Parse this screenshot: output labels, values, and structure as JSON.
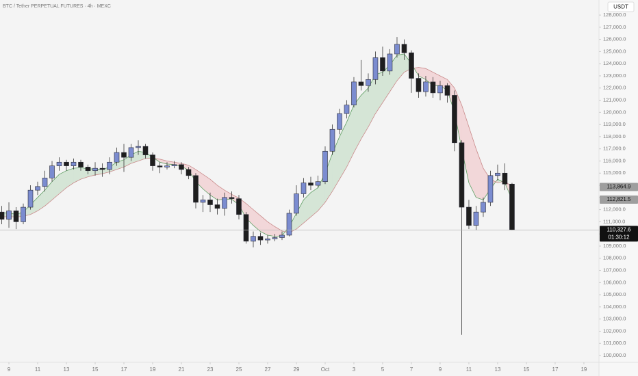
{
  "chart_data": {
    "type": "candlestick",
    "title": "BTC / Tether PERPETUAL FUTURES · 4h · MEXC",
    "currency": "USDT",
    "countdown": "01:30:12",
    "up_color": "#7b8cd0",
    "down_color": "#1e1e1e",
    "x": [
      8.5,
      9,
      9.5,
      10,
      10.5,
      11,
      11.5,
      12,
      12.5,
      13,
      13.5,
      14,
      14.5,
      15,
      15.5,
      16,
      16.5,
      17,
      17.5,
      18,
      18.5,
      19,
      19.5,
      20,
      20.5,
      21,
      21.5,
      22,
      22.5,
      23,
      23.5,
      24,
      24.5,
      25,
      25.5,
      26,
      26.5,
      27,
      27.5,
      28,
      28.5,
      29,
      29.5,
      30,
      30.5,
      31,
      31.5,
      32,
      32.5,
      33,
      33.5,
      34,
      34.5,
      35,
      35.5,
      36,
      36.5,
      37,
      37.5,
      38,
      38.5,
      39,
      39.5,
      40,
      40.5,
      41,
      41.5,
      42,
      42.5,
      43,
      43.5,
      44
    ],
    "open": [
      111800,
      111200,
      111900,
      111000,
      112200,
      113600,
      113900,
      114600,
      115600,
      115900,
      115600,
      115900,
      115500,
      115200,
      115400,
      115300,
      115900,
      116700,
      116300,
      117100,
      117200,
      116500,
      115600,
      115500,
      115600,
      115700,
      115300,
      114800,
      112600,
      112800,
      112400,
      112100,
      113000,
      112900,
      111600,
      109400,
      109800,
      109500,
      109600,
      109700,
      109900,
      111700,
      113300,
      114200,
      114000,
      114300,
      116800,
      118600,
      119900,
      120600,
      122500,
      122200,
      122700,
      124500,
      123400,
      124800,
      125600,
      124900,
      122800,
      121700,
      122500,
      121600,
      122200,
      121400,
      117500,
      112200,
      110700,
      111800,
      112600,
      114800,
      115000,
      114100
    ],
    "high": [
      112300,
      112600,
      112200,
      112500,
      114000,
      114300,
      115200,
      116000,
      116300,
      116100,
      116200,
      116100,
      115700,
      115900,
      115800,
      116300,
      117100,
      117400,
      117400,
      117700,
      117400,
      116700,
      115900,
      115900,
      116000,
      115900,
      115500,
      115000,
      113200,
      113400,
      112900,
      113400,
      113500,
      113200,
      111800,
      110200,
      110100,
      109900,
      110000,
      110200,
      112000,
      114000,
      114600,
      114700,
      114800,
      117200,
      119000,
      120300,
      121000,
      122900,
      124300,
      123200,
      125000,
      125400,
      125200,
      126200,
      126000,
      125100,
      123200,
      123000,
      122900,
      122600,
      122400,
      121800,
      117700,
      112800,
      112300,
      113000,
      115200,
      115700,
      115800,
      114200
    ],
    "low": [
      110800,
      110500,
      110400,
      110800,
      112000,
      113200,
      113500,
      114300,
      115200,
      115200,
      115300,
      115200,
      114900,
      114800,
      114700,
      114900,
      115600,
      115100,
      116000,
      116500,
      116200,
      115200,
      115000,
      115300,
      115400,
      114900,
      114500,
      112100,
      111800,
      111800,
      111600,
      111500,
      112500,
      111200,
      109200,
      108900,
      109100,
      109200,
      109400,
      109500,
      109800,
      111500,
      113000,
      113600,
      113800,
      114100,
      116500,
      118200,
      119500,
      120400,
      121800,
      121700,
      122300,
      123000,
      123100,
      124500,
      124300,
      121600,
      121200,
      121300,
      121200,
      121000,
      120800,
      116800,
      101700,
      110400,
      110300,
      111400,
      112300,
      114400,
      113600,
      110300
    ],
    "close": [
      111200,
      111900,
      111000,
      112200,
      113600,
      113900,
      114600,
      115600,
      115900,
      115600,
      115900,
      115500,
      115200,
      115400,
      115300,
      115900,
      116700,
      116300,
      117100,
      117200,
      116500,
      115600,
      115500,
      115600,
      115700,
      115300,
      114800,
      112600,
      112800,
      112400,
      112100,
      113000,
      112900,
      111600,
      109400,
      109800,
      109500,
      109600,
      109700,
      109900,
      111700,
      113300,
      114200,
      114000,
      114300,
      116800,
      118600,
      119900,
      120600,
      122500,
      122200,
      122700,
      124500,
      123400,
      124800,
      125600,
      124900,
      122800,
      121700,
      122500,
      121600,
      122200,
      121400,
      117500,
      112200,
      110700,
      111800,
      112600,
      114800,
      115000,
      114100,
      110327.6
    ],
    "close_label": "110,327.6",
    "ma_fast": {
      "color": "#5e9e62",
      "last_label": "112,821.5",
      "values": [
        111700,
        111750,
        111600,
        111800,
        112400,
        113000,
        113600,
        114300,
        114900,
        115200,
        115400,
        115450,
        115350,
        115350,
        115300,
        115500,
        115900,
        116100,
        116500,
        116800,
        116700,
        116300,
        115900,
        115750,
        115700,
        115550,
        115250,
        114300,
        113700,
        113200,
        112800,
        112850,
        112850,
        112400,
        111300,
        110700,
        110200,
        109900,
        109800,
        109850,
        110600,
        111700,
        112800,
        113400,
        113800,
        115000,
        116600,
        118000,
        119200,
        120600,
        121400,
        122000,
        123100,
        123300,
        123900,
        124700,
        124800,
        124000,
        123000,
        122700,
        122200,
        122200,
        121800,
        120000,
        117000,
        114200,
        113000,
        112800,
        113700,
        114500,
        114200,
        112821.5
      ]
    },
    "ma_slow": {
      "color": "#c98a8a",
      "last_label": "113,864.9",
      "values": [
        111400,
        111420,
        111400,
        111450,
        111600,
        111900,
        112300,
        112800,
        113300,
        113800,
        114200,
        114500,
        114700,
        114850,
        114950,
        115100,
        115300,
        115500,
        115800,
        116000,
        116200,
        116250,
        116150,
        116000,
        115900,
        115800,
        115650,
        115300,
        114900,
        114500,
        114000,
        113600,
        113250,
        112950,
        112500,
        112000,
        111500,
        111000,
        110600,
        110250,
        110100,
        110400,
        110900,
        111400,
        111900,
        112600,
        113500,
        114500,
        115500,
        116700,
        117800,
        118800,
        119900,
        120800,
        121700,
        122600,
        123300,
        123600,
        123700,
        123600,
        123300,
        123000,
        122700,
        122000,
        120600,
        118800,
        117000,
        115400,
        114500,
        114200,
        114350,
        113864.9
      ]
    },
    "xlim": [
      8.38,
      50.05
    ],
    "ylim": [
      99440,
      129240
    ],
    "xticks": [
      9,
      11,
      13,
      15,
      17,
      19,
      21,
      23,
      25,
      27,
      29,
      {
        "value": 31,
        "label": "Oct"
      },
      {
        "value": 33,
        "label": "3"
      },
      {
        "value": 35,
        "label": "5"
      },
      {
        "value": 37,
        "label": "7"
      },
      {
        "value": 39,
        "label": "9"
      },
      {
        "value": 41,
        "label": "11"
      },
      {
        "value": 43,
        "label": "13"
      },
      {
        "value": 45,
        "label": "15"
      },
      {
        "value": 47,
        "label": "17"
      },
      {
        "value": 49,
        "label": "19"
      }
    ],
    "yticks": [
      {
        "value": 100000,
        "label": "100,000.0"
      },
      {
        "value": 101000,
        "label": "101,000.0"
      },
      {
        "value": 102000,
        "label": "102,000.0"
      },
      {
        "value": 103000,
        "label": "103,000.0"
      },
      {
        "value": 104000,
        "label": "104,000.0"
      },
      {
        "value": 105000,
        "label": "105,000.0"
      },
      {
        "value": 106000,
        "label": "106,000.0"
      },
      {
        "value": 107000,
        "label": "107,000.0"
      },
      {
        "value": 108000,
        "label": "108,000.0"
      },
      {
        "value": 109000,
        "label": "109,000.0"
      },
      {
        "value": 110000,
        "label": "110,000.0"
      },
      {
        "value": 111000,
        "label": "111,000.0"
      },
      {
        "value": 112000,
        "label": "112,000.0"
      },
      {
        "value": 113000,
        "label": "113,000.0"
      },
      {
        "value": 114000,
        "label": "114,000.0"
      },
      {
        "value": 115000,
        "label": "115,000.0"
      },
      {
        "value": 116000,
        "label": "116,000.0"
      },
      {
        "value": 117000,
        "label": "117,000.0"
      },
      {
        "value": 118000,
        "label": "118,000.0"
      },
      {
        "value": 119000,
        "label": "119,000.0"
      },
      {
        "value": 120000,
        "label": "120,000.0"
      },
      {
        "value": 121000,
        "label": "121,000.0"
      },
      {
        "value": 122000,
        "label": "122,000.0"
      },
      {
        "value": 123000,
        "label": "123,000.0"
      },
      {
        "value": 124000,
        "label": "124,000.0"
      },
      {
        "value": 125000,
        "label": "125,000.0"
      },
      {
        "value": 126000,
        "label": "126,000.0"
      },
      {
        "value": 127000,
        "label": "127,000.0"
      },
      {
        "value": 128000,
        "label": "128,000.0"
      }
    ],
    "grid": false
  }
}
